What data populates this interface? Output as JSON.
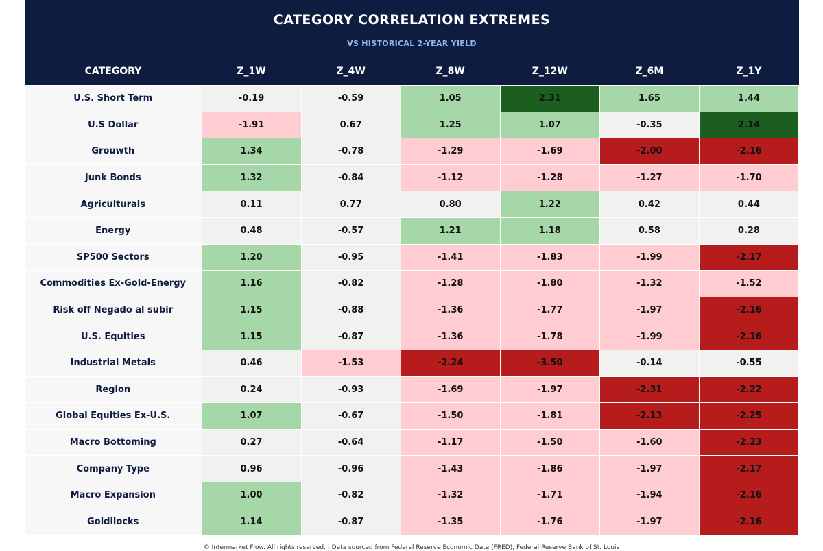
{
  "header": {
    "title": "CATEGORY CORRELATION EXTREMES",
    "subtitle": "VS HISTORICAL 2-YEAR YIELD"
  },
  "footer": {
    "text": "© Intermarket Flow. All rights reserved.  |  Data sourced from Federal Reserve Economic Data (FRED), Federal Reserve Bank of St. Louis"
  },
  "colors": {
    "header_bg": "#0e1c40",
    "neutral": "#f1f1f0",
    "light_green": "#a6d7a8",
    "dark_green": "#1b5e20",
    "light_red": "#ffccd1",
    "dark_red": "#b71c1c"
  },
  "chart_data": {
    "type": "table",
    "columns": [
      "CATEGORY",
      "Z_1W",
      "Z_4W",
      "Z_8W",
      "Z_12W",
      "Z_6M",
      "Z_1Y"
    ],
    "rows": [
      {
        "category": "U.S. Short Term",
        "values": [
          -0.19,
          -0.59,
          1.05,
          2.31,
          1.65,
          1.44
        ]
      },
      {
        "category": "U.S Dollar",
        "values": [
          -1.91,
          0.67,
          1.25,
          1.07,
          -0.35,
          2.14
        ]
      },
      {
        "category": "Grouwth",
        "values": [
          1.34,
          -0.78,
          -1.29,
          -1.69,
          -2.0,
          -2.16
        ]
      },
      {
        "category": "Junk Bonds",
        "values": [
          1.32,
          -0.84,
          -1.12,
          -1.28,
          -1.27,
          -1.7
        ]
      },
      {
        "category": "Agriculturals",
        "values": [
          0.11,
          0.77,
          0.8,
          1.22,
          0.42,
          0.44
        ]
      },
      {
        "category": "Energy",
        "values": [
          0.48,
          -0.57,
          1.21,
          1.18,
          0.58,
          0.28
        ]
      },
      {
        "category": "SP500 Sectors",
        "values": [
          1.2,
          -0.95,
          -1.41,
          -1.83,
          -1.99,
          -2.17
        ]
      },
      {
        "category": "Commodities Ex-Gold-Energy",
        "values": [
          1.16,
          -0.82,
          -1.28,
          -1.8,
          -1.32,
          -1.52
        ]
      },
      {
        "category": "Risk off Negado al subir",
        "values": [
          1.15,
          -0.88,
          -1.36,
          -1.77,
          -1.97,
          -2.16
        ]
      },
      {
        "category": "U.S. Equities",
        "values": [
          1.15,
          -0.87,
          -1.36,
          -1.78,
          -1.99,
          -2.16
        ]
      },
      {
        "category": "Industrial Metals",
        "values": [
          0.46,
          -1.53,
          -2.24,
          -3.5,
          -0.14,
          -0.55
        ]
      },
      {
        "category": "Region",
        "values": [
          0.24,
          -0.93,
          -1.69,
          -1.97,
          -2.31,
          -2.22
        ]
      },
      {
        "category": "Global Equities Ex-U.S.",
        "values": [
          1.07,
          -0.67,
          -1.5,
          -1.81,
          -2.13,
          -2.25
        ]
      },
      {
        "category": "Macro Bottoming",
        "values": [
          0.27,
          -0.64,
          -1.17,
          -1.5,
          -1.6,
          -2.23
        ]
      },
      {
        "category": "Company Type",
        "values": [
          0.96,
          -0.96,
          -1.43,
          -1.86,
          -1.97,
          -2.17
        ]
      },
      {
        "category": "Macro Expansion",
        "values": [
          1.0,
          -0.82,
          -1.32,
          -1.71,
          -1.94,
          -2.16
        ]
      },
      {
        "category": "Goldilocks",
        "values": [
          1.14,
          -0.87,
          -1.35,
          -1.76,
          -1.97,
          -2.16
        ]
      }
    ]
  }
}
